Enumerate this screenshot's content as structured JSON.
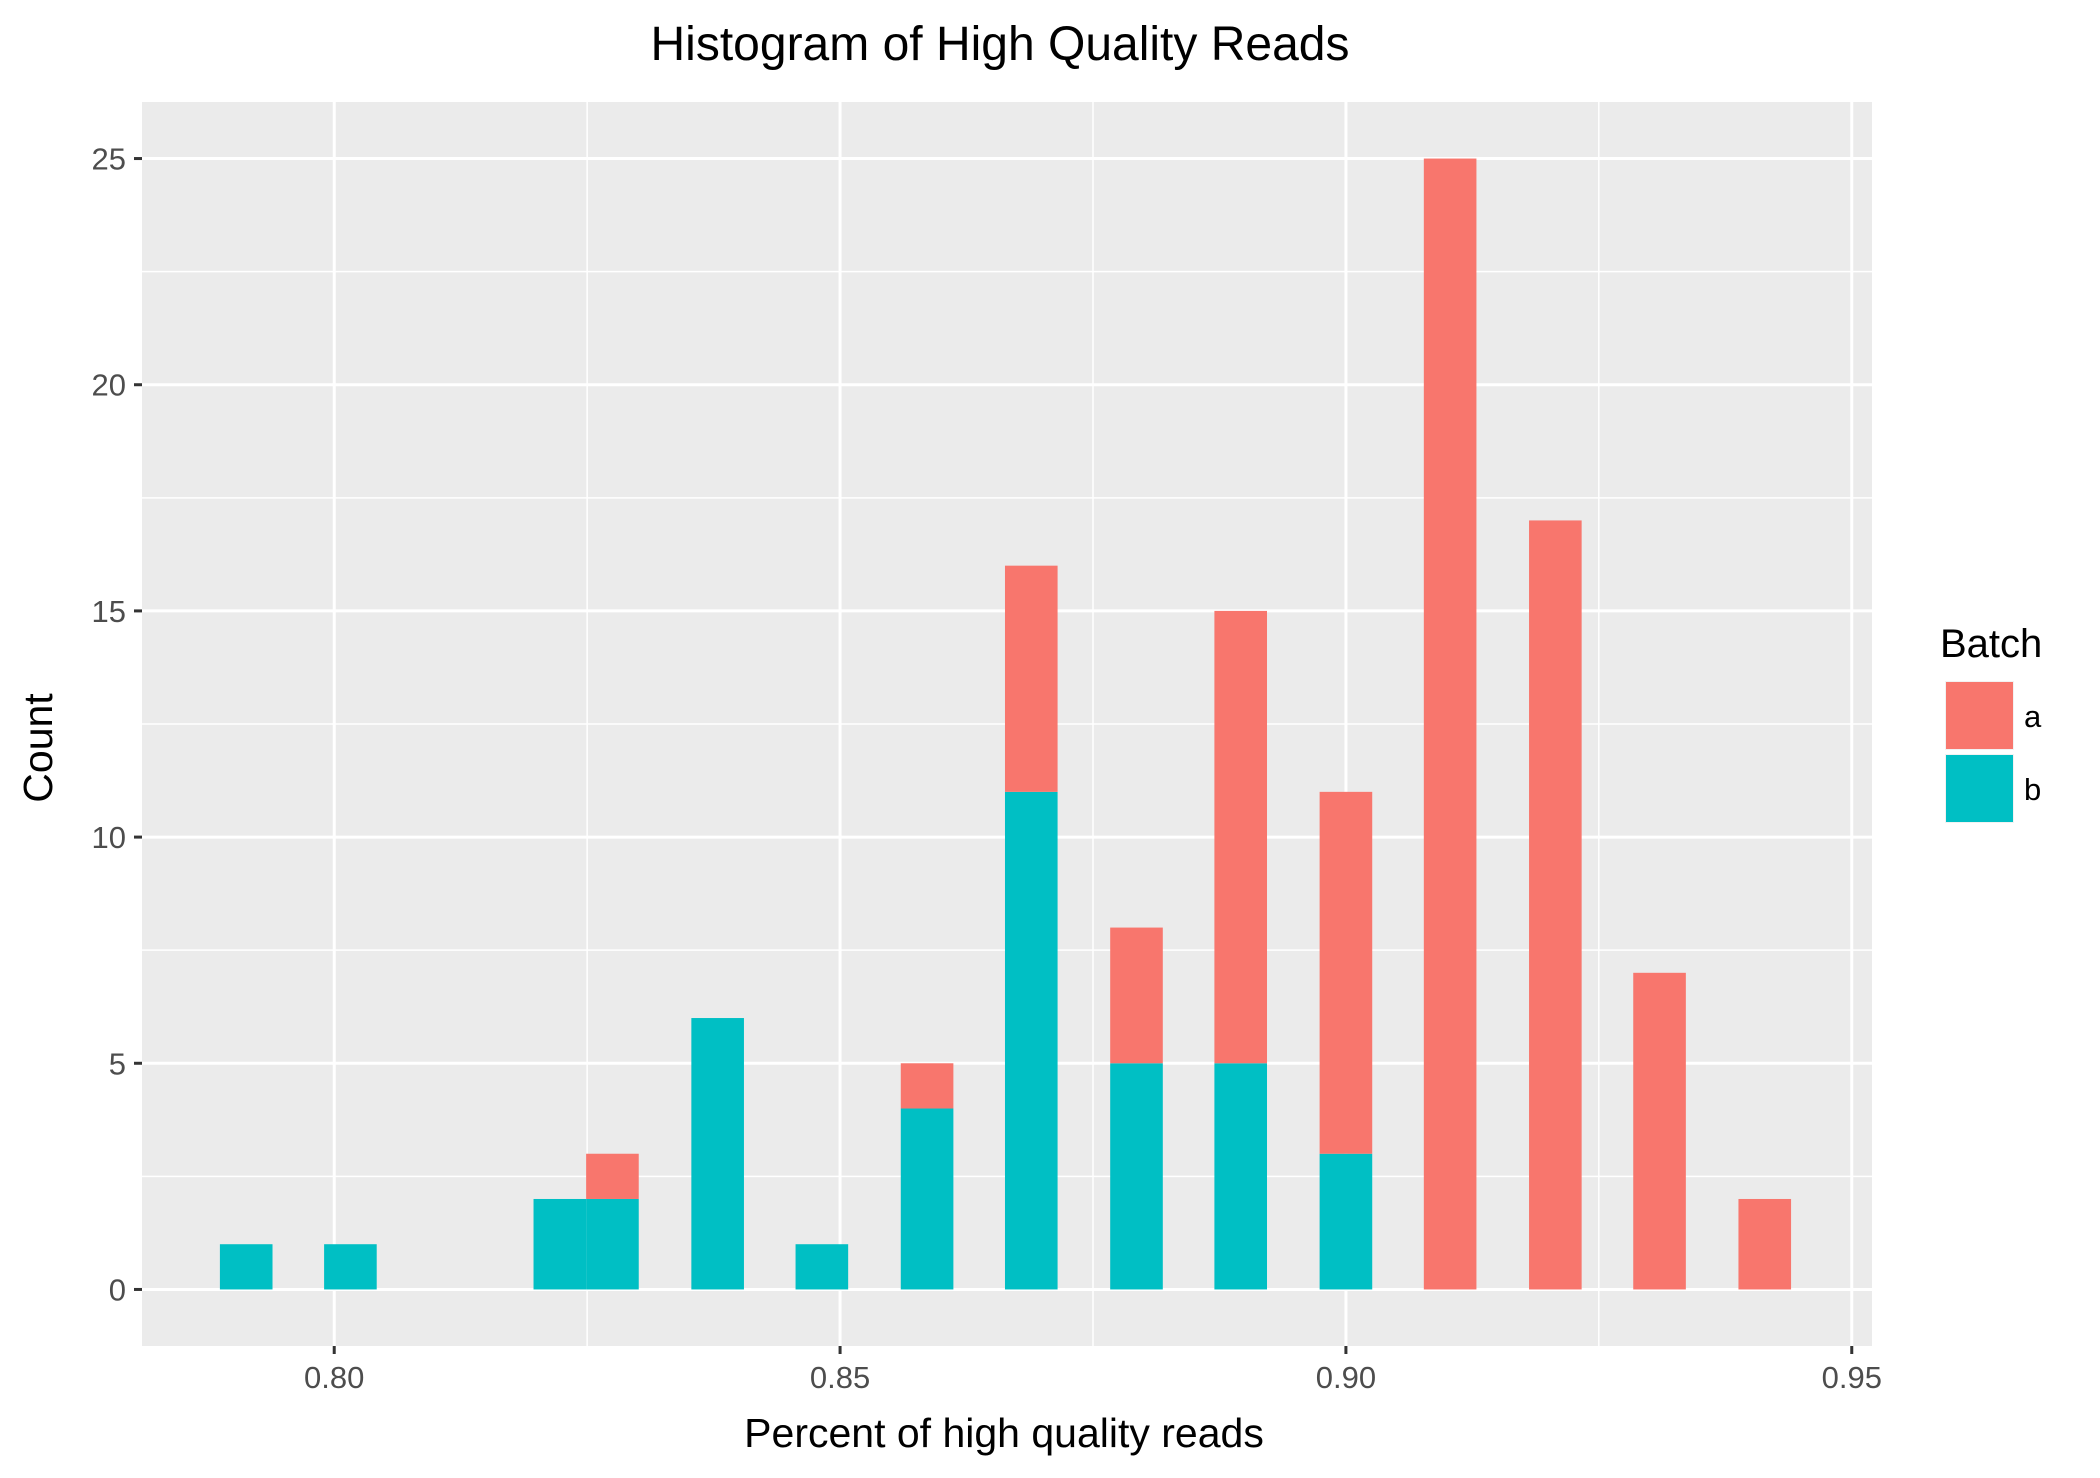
{
  "chart_data": {
    "type": "bar",
    "stacked": true,
    "title": "Histogram of High Quality Reads",
    "xlabel": "Percent of high quality reads",
    "ylabel": "Count",
    "xlim": [
      0.781,
      0.952
    ],
    "ylim": [
      -1.25,
      26.25
    ],
    "xticks": [
      {
        "value": 0.8,
        "label": "0.80"
      },
      {
        "value": 0.85,
        "label": "0.85"
      },
      {
        "value": 0.9,
        "label": "0.90"
      },
      {
        "value": 0.95,
        "label": "0.95"
      }
    ],
    "yticks": [
      {
        "value": 0,
        "label": "0"
      },
      {
        "value": 5,
        "label": "5"
      },
      {
        "value": 10,
        "label": "10"
      },
      {
        "value": 15,
        "label": "15"
      },
      {
        "value": 20,
        "label": "20"
      },
      {
        "value": 25,
        "label": "25"
      }
    ],
    "bin_width": 0.0052,
    "bins": [
      0.7913,
      0.8016,
      0.8223,
      0.8275,
      0.8379,
      0.8482,
      0.8586,
      0.8689,
      0.8793,
      0.8896,
      0.9,
      0.9103,
      0.9207,
      0.931,
      0.9414
    ],
    "series": [
      {
        "name": "a",
        "color": "#F8766D",
        "values": [
          0,
          0,
          0,
          1,
          0,
          0,
          1,
          5,
          3,
          10,
          8,
          25,
          17,
          7,
          2
        ]
      },
      {
        "name": "b",
        "color": "#00BFC4",
        "values": [
          1,
          1,
          2,
          2,
          6,
          1,
          4,
          11,
          5,
          5,
          3,
          0,
          0,
          0,
          0
        ]
      }
    ],
    "grid": true,
    "panel_background": "#EBEBEB",
    "legend": {
      "title": "Batch",
      "position": "right"
    }
  }
}
